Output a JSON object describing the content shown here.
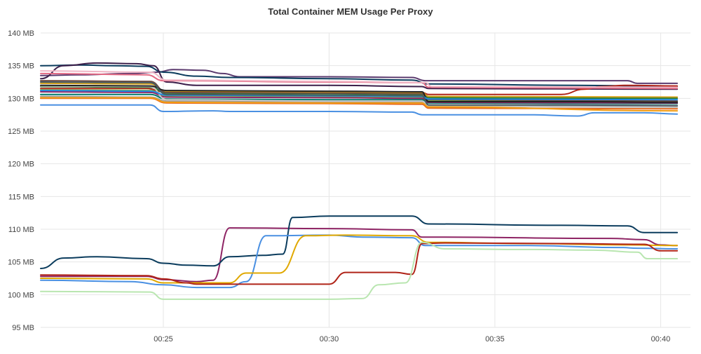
{
  "chart_data": {
    "type": "line",
    "title": "Total Container MEM Usage Per Proxy",
    "xlabel": "",
    "ylabel": "",
    "ylim": [
      95,
      140
    ],
    "xlim_minutes": [
      21.3,
      40.9
    ],
    "y_ticks": [
      {
        "value": 95,
        "label": "95 MB"
      },
      {
        "value": 100,
        "label": "100 MB"
      },
      {
        "value": 105,
        "label": "105 MB"
      },
      {
        "value": 110,
        "label": "110 MB"
      },
      {
        "value": 115,
        "label": "115 MB"
      },
      {
        "value": 120,
        "label": "120 MB"
      },
      {
        "value": 125,
        "label": "125 MB"
      },
      {
        "value": 130,
        "label": "130 MB"
      },
      {
        "value": 135,
        "label": "135 MB"
      },
      {
        "value": 140,
        "label": "140 MB"
      }
    ],
    "x_ticks": [
      {
        "value": 25,
        "label": "00:25"
      },
      {
        "value": 30,
        "label": "00:30"
      },
      {
        "value": 35,
        "label": "00:35"
      },
      {
        "value": 40,
        "label": "00:40"
      }
    ],
    "grid": true,
    "legend": "none",
    "series": [
      {
        "color": "#5b3a6e",
        "points": [
          [
            21.3,
            133.5
          ],
          [
            22.5,
            133.6
          ],
          [
            24.0,
            133.8
          ],
          [
            24.8,
            134.0
          ],
          [
            25.3,
            134.4
          ],
          [
            26.2,
            134.3
          ],
          [
            26.8,
            133.8
          ],
          [
            27.3,
            133.3
          ],
          [
            30.0,
            133.3
          ],
          [
            32.5,
            133.2
          ],
          [
            32.9,
            132.7
          ],
          [
            36.0,
            132.7
          ],
          [
            39.0,
            132.7
          ],
          [
            39.3,
            132.3
          ],
          [
            40.5,
            132.3
          ]
        ]
      },
      {
        "color": "#0b3c5d",
        "points": [
          [
            21.3,
            135.0
          ],
          [
            22.5,
            135.1
          ],
          [
            23.5,
            135.0
          ],
          [
            24.5,
            134.9
          ],
          [
            25.0,
            134.0
          ],
          [
            26.0,
            133.4
          ],
          [
            27.0,
            133.2
          ],
          [
            30.0,
            133.0
          ],
          [
            32.5,
            132.8
          ],
          [
            33.0,
            132.2
          ],
          [
            37.5,
            132.0
          ],
          [
            40.5,
            131.8
          ]
        ]
      },
      {
        "color": "#3c1f4a",
        "points": [
          [
            21.3,
            133.0
          ],
          [
            22.0,
            135.0
          ],
          [
            23.0,
            135.4
          ],
          [
            24.2,
            135.3
          ],
          [
            24.7,
            135.0
          ],
          [
            25.1,
            132.5
          ],
          [
            26.0,
            132.0
          ],
          [
            30.0,
            132.0
          ],
          [
            32.8,
            131.8
          ],
          [
            33.0,
            131.5
          ],
          [
            40.5,
            131.4
          ]
        ]
      },
      {
        "color": "#b02418",
        "points": [
          [
            21.3,
            131.5
          ],
          [
            24.5,
            131.5
          ],
          [
            25.0,
            131.0
          ],
          [
            30.0,
            131.0
          ],
          [
            32.8,
            130.9
          ],
          [
            33.0,
            130.6
          ],
          [
            37.0,
            130.6
          ],
          [
            37.7,
            131.4
          ],
          [
            38.2,
            131.8
          ],
          [
            39.0,
            132.0
          ],
          [
            40.5,
            131.9
          ]
        ]
      },
      {
        "color": "#e36a84",
        "points": [
          [
            21.3,
            133.8
          ],
          [
            24.5,
            133.6
          ],
          [
            25.0,
            132.7
          ],
          [
            30.0,
            132.5
          ],
          [
            32.8,
            132.4
          ],
          [
            33.0,
            131.7
          ],
          [
            40.5,
            131.5
          ]
        ]
      },
      {
        "color": "#f0b6c6",
        "points": [
          [
            21.3,
            134.2
          ],
          [
            24.6,
            134.0
          ],
          [
            25.1,
            132.8
          ],
          [
            30.0,
            132.6
          ],
          [
            32.9,
            132.4
          ],
          [
            33.1,
            131.8
          ],
          [
            40.5,
            131.7
          ]
        ]
      },
      {
        "color": "#d4a017",
        "points": [
          [
            21.3,
            132.3
          ],
          [
            24.6,
            132.2
          ],
          [
            25.1,
            131.0
          ],
          [
            30.0,
            130.9
          ],
          [
            32.8,
            130.9
          ],
          [
            33.0,
            130.3
          ],
          [
            40.5,
            130.2
          ]
        ]
      },
      {
        "color": "#2e7d32",
        "points": [
          [
            21.3,
            131.8
          ],
          [
            24.6,
            131.7
          ],
          [
            25.1,
            130.8
          ],
          [
            30.0,
            130.7
          ],
          [
            32.8,
            130.6
          ],
          [
            33.0,
            130.1
          ],
          [
            40.5,
            130.0
          ]
        ]
      },
      {
        "color": "#7cb342",
        "points": [
          [
            21.3,
            131.3
          ],
          [
            24.6,
            131.2
          ],
          [
            25.1,
            130.4
          ],
          [
            30.0,
            130.3
          ],
          [
            32.8,
            130.2
          ],
          [
            33.0,
            129.6
          ],
          [
            40.5,
            129.5
          ]
        ]
      },
      {
        "color": "#00796b",
        "points": [
          [
            21.3,
            130.6
          ],
          [
            24.6,
            130.6
          ],
          [
            25.1,
            129.9
          ],
          [
            30.0,
            129.8
          ],
          [
            32.8,
            129.8
          ],
          [
            33.0,
            129.3
          ],
          [
            40.5,
            129.2
          ]
        ]
      },
      {
        "color": "#6d4c41",
        "points": [
          [
            21.3,
            132.7
          ],
          [
            24.6,
            132.6
          ],
          [
            25.1,
            130.9
          ],
          [
            30.0,
            130.8
          ],
          [
            32.8,
            130.7
          ],
          [
            33.0,
            129.8
          ],
          [
            40.5,
            129.6
          ]
        ]
      },
      {
        "color": "#8e2464",
        "points": [
          [
            21.3,
            131.0
          ],
          [
            24.6,
            130.9
          ],
          [
            25.1,
            130.2
          ],
          [
            30.0,
            130.1
          ],
          [
            32.8,
            130.0
          ],
          [
            33.0,
            129.4
          ],
          [
            40.5,
            129.3
          ]
        ]
      },
      {
        "color": "#9e9e9e",
        "points": [
          [
            21.3,
            130.3
          ],
          [
            24.6,
            130.2
          ],
          [
            25.1,
            129.6
          ],
          [
            30.0,
            129.5
          ],
          [
            32.8,
            129.5
          ],
          [
            33.0,
            129.0
          ],
          [
            40.5,
            128.8
          ]
        ]
      },
      {
        "color": "#c8c8c8",
        "points": [
          [
            21.3,
            131.9
          ],
          [
            24.6,
            131.8
          ],
          [
            25.1,
            129.8
          ],
          [
            30.0,
            129.6
          ],
          [
            32.8,
            129.6
          ],
          [
            33.0,
            128.8
          ],
          [
            40.5,
            128.6
          ]
        ]
      },
      {
        "color": "#222222",
        "points": [
          [
            21.3,
            132.0
          ],
          [
            24.6,
            131.9
          ],
          [
            25.1,
            131.2
          ],
          [
            30.0,
            131.1
          ],
          [
            32.8,
            131.0
          ],
          [
            33.0,
            129.5
          ],
          [
            37.5,
            129.5
          ],
          [
            40.5,
            129.4
          ]
        ]
      },
      {
        "color": "#e66a1f",
        "points": [
          [
            21.3,
            130.0
          ],
          [
            24.6,
            130.0
          ],
          [
            25.1,
            129.3
          ],
          [
            30.0,
            129.2
          ],
          [
            32.8,
            129.1
          ],
          [
            33.0,
            128.5
          ],
          [
            40.5,
            128.4
          ]
        ]
      },
      {
        "color": "#f39c12",
        "points": [
          [
            21.3,
            130.1
          ],
          [
            24.6,
            130.1
          ],
          [
            25.1,
            129.4
          ],
          [
            30.0,
            129.3
          ],
          [
            32.8,
            129.3
          ],
          [
            33.0,
            128.7
          ],
          [
            40.5,
            128.1
          ]
        ]
      },
      {
        "color": "#1e88e5",
        "points": [
          [
            21.3,
            131.2
          ],
          [
            24.6,
            131.1
          ],
          [
            25.1,
            130.5
          ],
          [
            30.0,
            130.4
          ],
          [
            32.8,
            130.3
          ],
          [
            33.0,
            129.9
          ],
          [
            40.5,
            129.8
          ]
        ]
      },
      {
        "color": "#455a64",
        "points": [
          [
            21.3,
            132.5
          ],
          [
            24.6,
            132.4
          ],
          [
            25.1,
            130.6
          ],
          [
            30.0,
            130.5
          ],
          [
            32.8,
            130.4
          ],
          [
            33.0,
            129.0
          ],
          [
            37.0,
            129.0
          ],
          [
            40.5,
            128.9
          ]
        ]
      },
      {
        "color": "#4a90e2",
        "points": [
          [
            21.3,
            129.0
          ],
          [
            24.6,
            129.0
          ],
          [
            25.0,
            128.0
          ],
          [
            26.5,
            128.1
          ],
          [
            27.0,
            128.0
          ],
          [
            30.0,
            128.0
          ],
          [
            32.5,
            127.9
          ],
          [
            32.8,
            127.5
          ],
          [
            36.0,
            127.5
          ],
          [
            37.5,
            127.3
          ],
          [
            38.0,
            127.8
          ],
          [
            39.5,
            127.8
          ],
          [
            40.5,
            127.6
          ]
        ]
      },
      {
        "color": "#8e2464",
        "points": [
          [
            21.3,
            102.8
          ],
          [
            24.5,
            102.8
          ],
          [
            25.0,
            102.3
          ],
          [
            26.0,
            102.0
          ],
          [
            26.5,
            102.2
          ],
          [
            27.0,
            110.2
          ],
          [
            30.0,
            110.1
          ],
          [
            32.5,
            109.9
          ],
          [
            32.8,
            108.8
          ],
          [
            38.5,
            108.6
          ],
          [
            39.5,
            108.4
          ],
          [
            40.0,
            107.6
          ],
          [
            40.5,
            107.5
          ]
        ]
      },
      {
        "color": "#0b3c5d",
        "points": [
          [
            21.3,
            104.0
          ],
          [
            22.0,
            105.6
          ],
          [
            23.0,
            105.8
          ],
          [
            24.5,
            105.5
          ],
          [
            25.0,
            104.8
          ],
          [
            25.7,
            104.5
          ],
          [
            26.5,
            104.4
          ],
          [
            27.0,
            105.8
          ],
          [
            28.0,
            106.0
          ],
          [
            28.6,
            106.2
          ],
          [
            28.9,
            111.8
          ],
          [
            30.0,
            112.0
          ],
          [
            32.5,
            112.0
          ],
          [
            33.0,
            110.8
          ],
          [
            37.0,
            110.6
          ],
          [
            39.0,
            110.5
          ],
          [
            39.5,
            109.5
          ],
          [
            40.5,
            109.5
          ]
        ]
      },
      {
        "color": "#4a90e2",
        "points": [
          [
            21.3,
            102.2
          ],
          [
            24.0,
            102.0
          ],
          [
            25.0,
            101.5
          ],
          [
            26.0,
            101.1
          ],
          [
            27.0,
            101.1
          ],
          [
            27.5,
            102.0
          ],
          [
            28.1,
            109.0
          ],
          [
            30.0,
            109.1
          ],
          [
            31.0,
            108.8
          ],
          [
            32.5,
            108.7
          ],
          [
            32.9,
            107.5
          ],
          [
            36.0,
            107.5
          ],
          [
            38.8,
            107.2
          ],
          [
            39.3,
            107.1
          ],
          [
            40.5,
            107.0
          ]
        ]
      },
      {
        "color": "#e0a800",
        "points": [
          [
            21.3,
            102.5
          ],
          [
            24.5,
            102.4
          ],
          [
            25.0,
            101.8
          ],
          [
            27.0,
            101.8
          ],
          [
            27.5,
            103.3
          ],
          [
            28.5,
            103.3
          ],
          [
            29.3,
            109.0
          ],
          [
            30.5,
            109.1
          ],
          [
            32.5,
            109.0
          ],
          [
            33.0,
            108.0
          ],
          [
            36.0,
            107.8
          ],
          [
            39.0,
            107.6
          ],
          [
            40.5,
            107.5
          ]
        ]
      },
      {
        "color": "#b02418",
        "points": [
          [
            21.3,
            103.0
          ],
          [
            24.5,
            102.9
          ],
          [
            25.0,
            102.4
          ],
          [
            25.7,
            101.8
          ],
          [
            26.0,
            101.6
          ],
          [
            30.0,
            101.6
          ],
          [
            30.5,
            103.4
          ],
          [
            32.0,
            103.4
          ],
          [
            32.5,
            103.1
          ],
          [
            32.8,
            107.8
          ],
          [
            33.5,
            107.9
          ],
          [
            37.0,
            107.8
          ],
          [
            39.5,
            107.7
          ],
          [
            40.0,
            106.7
          ],
          [
            40.5,
            106.7
          ]
        ]
      },
      {
        "color": "#b9e6b0",
        "points": [
          [
            21.3,
            100.5
          ],
          [
            24.6,
            100.4
          ],
          [
            25.0,
            99.3
          ],
          [
            30.0,
            99.3
          ],
          [
            31.0,
            99.4
          ],
          [
            31.5,
            101.5
          ],
          [
            32.3,
            101.8
          ],
          [
            32.8,
            108.0
          ],
          [
            33.5,
            107.0
          ],
          [
            36.0,
            106.9
          ],
          [
            38.0,
            106.8
          ],
          [
            39.3,
            106.5
          ],
          [
            39.6,
            105.5
          ],
          [
            40.5,
            105.5
          ]
        ]
      }
    ]
  }
}
